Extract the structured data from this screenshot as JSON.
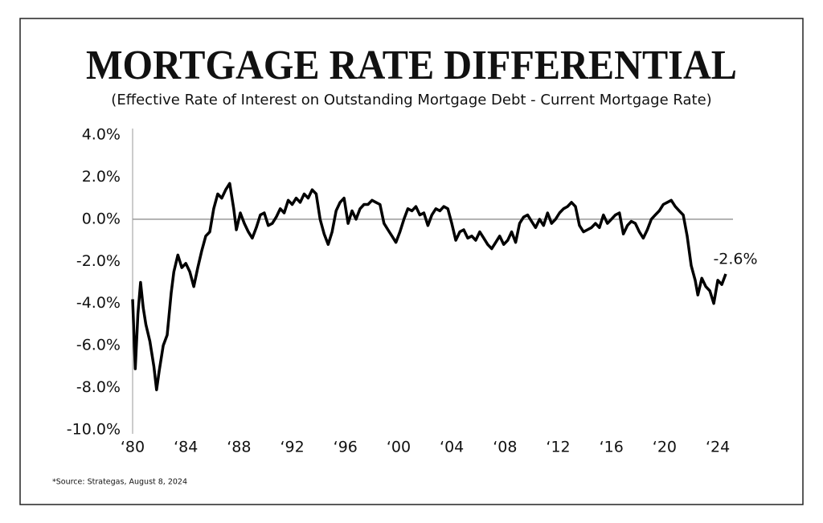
{
  "chart_data": {
    "type": "line",
    "title": "MORTGAGE RATE DIFFERENTIAL",
    "subtitle": "(Effective Rate of Interest on Outstanding Mortgage Debt - Current Mortgage Rate)",
    "source": "*Source: Strategas, August 8, 2024",
    "annotation": "-2.6%",
    "xlim": [
      1980,
      2024.9
    ],
    "xticks": [
      {
        "value": 1980,
        "label": "‘80"
      },
      {
        "value": 1984,
        "label": "‘84"
      },
      {
        "value": 1988,
        "label": "‘88"
      },
      {
        "value": 1992,
        "label": "‘92"
      },
      {
        "value": 1996,
        "label": "‘96"
      },
      {
        "value": 2000,
        "label": "‘00"
      },
      {
        "value": 2004,
        "label": "‘04"
      },
      {
        "value": 2008,
        "label": "‘08"
      },
      {
        "value": 2012,
        "label": "‘12"
      },
      {
        "value": 2016,
        "label": "‘16"
      },
      {
        "value": 2020,
        "label": "‘20"
      },
      {
        "value": 2024,
        "label": "‘24"
      }
    ],
    "ylim": [
      -10,
      4
    ],
    "yticks": [
      {
        "value": -10,
        "label": "-10.0%"
      },
      {
        "value": -8,
        "label": "-8.0%"
      },
      {
        "value": -6,
        "label": "-6.0%"
      },
      {
        "value": -4,
        "label": "-4.0%"
      },
      {
        "value": -2,
        "label": "-2.0%"
      },
      {
        "value": 0,
        "label": "0.0%"
      },
      {
        "value": 2,
        "label": "2.0%"
      },
      {
        "value": 4,
        "label": "4.0%"
      }
    ],
    "series": [
      {
        "color": "#000000",
        "x": [
          1980.0,
          1980.2,
          1980.4,
          1980.6,
          1980.8,
          1981.0,
          1981.3,
          1981.6,
          1981.8,
          1982.0,
          1982.3,
          1982.6,
          1982.9,
          1983.1,
          1983.4,
          1983.7,
          1984.0,
          1984.3,
          1984.6,
          1984.9,
          1985.2,
          1985.5,
          1985.8,
          1986.1,
          1986.4,
          1986.7,
          1987.0,
          1987.3,
          1987.6,
          1987.8,
          1988.1,
          1988.4,
          1988.7,
          1989.0,
          1989.3,
          1989.6,
          1989.9,
          1990.2,
          1990.5,
          1990.8,
          1991.1,
          1991.4,
          1991.7,
          1992.0,
          1992.3,
          1992.6,
          1992.9,
          1993.2,
          1993.5,
          1993.8,
          1994.1,
          1994.4,
          1994.7,
          1995.0,
          1995.3,
          1995.6,
          1995.9,
          1996.2,
          1996.5,
          1996.8,
          1997.1,
          1997.4,
          1997.7,
          1998.0,
          1998.3,
          1998.6,
          1998.9,
          1999.2,
          1999.5,
          1999.8,
          2000.1,
          2000.4,
          2000.7,
          2001.0,
          2001.3,
          2001.6,
          2001.9,
          2002.2,
          2002.5,
          2002.8,
          2003.1,
          2003.4,
          2003.7,
          2004.0,
          2004.3,
          2004.6,
          2004.9,
          2005.2,
          2005.5,
          2005.8,
          2006.1,
          2006.4,
          2006.7,
          2007.0,
          2007.3,
          2007.6,
          2007.9,
          2008.2,
          2008.5,
          2008.8,
          2009.1,
          2009.4,
          2009.7,
          2010.0,
          2010.3,
          2010.6,
          2010.9,
          2011.2,
          2011.5,
          2011.8,
          2012.1,
          2012.4,
          2012.7,
          2013.0,
          2013.3,
          2013.6,
          2013.9,
          2014.2,
          2014.5,
          2014.8,
          2015.1,
          2015.4,
          2015.7,
          2016.0,
          2016.3,
          2016.6,
          2016.9,
          2017.2,
          2017.5,
          2017.8,
          2018.1,
          2018.4,
          2018.7,
          2019.0,
          2019.3,
          2019.6,
          2019.9,
          2020.2,
          2020.5,
          2020.8,
          2021.1,
          2021.4,
          2021.7,
          2022.0,
          2022.3,
          2022.5,
          2022.8,
          2023.1,
          2023.4,
          2023.7,
          2024.0,
          2024.3,
          2024.6
        ],
        "values": [
          -3.8,
          -7.1,
          -4.5,
          -3.0,
          -4.2,
          -5.0,
          -5.8,
          -7.0,
          -8.1,
          -7.2,
          -6.0,
          -5.5,
          -3.5,
          -2.5,
          -1.7,
          -2.3,
          -2.1,
          -2.5,
          -3.2,
          -2.3,
          -1.5,
          -0.8,
          -0.6,
          0.5,
          1.2,
          1.0,
          1.4,
          1.7,
          0.5,
          -0.5,
          0.3,
          -0.2,
          -0.6,
          -0.9,
          -0.4,
          0.2,
          0.3,
          -0.3,
          -0.2,
          0.1,
          0.5,
          0.3,
          0.9,
          0.7,
          1.0,
          0.8,
          1.2,
          1.0,
          1.4,
          1.2,
          0.0,
          -0.7,
          -1.2,
          -0.6,
          0.4,
          0.8,
          1.0,
          -0.2,
          0.4,
          0.0,
          0.5,
          0.7,
          0.7,
          0.9,
          0.8,
          0.7,
          -0.2,
          -0.5,
          -0.8,
          -1.1,
          -0.6,
          0.0,
          0.5,
          0.4,
          0.6,
          0.2,
          0.3,
          -0.3,
          0.2,
          0.5,
          0.4,
          0.6,
          0.5,
          -0.2,
          -1.0,
          -0.6,
          -0.5,
          -0.9,
          -0.8,
          -1.0,
          -0.6,
          -0.9,
          -1.2,
          -1.4,
          -1.1,
          -0.8,
          -1.2,
          -1.0,
          -0.6,
          -1.1,
          -0.2,
          0.1,
          0.2,
          -0.1,
          -0.4,
          0.0,
          -0.3,
          0.3,
          -0.2,
          0.0,
          0.3,
          0.5,
          0.6,
          0.8,
          0.6,
          -0.3,
          -0.6,
          -0.5,
          -0.4,
          -0.2,
          -0.4,
          0.2,
          -0.2,
          0.0,
          0.2,
          0.3,
          -0.7,
          -0.3,
          -0.1,
          -0.2,
          -0.6,
          -0.9,
          -0.5,
          0.0,
          0.2,
          0.4,
          0.7,
          0.8,
          0.9,
          0.6,
          0.4,
          0.2,
          -0.8,
          -2.2,
          -2.9,
          -3.6,
          -2.8,
          -3.2,
          -3.4,
          -4.0,
          -2.9,
          -3.1,
          -2.6
        ]
      }
    ]
  }
}
